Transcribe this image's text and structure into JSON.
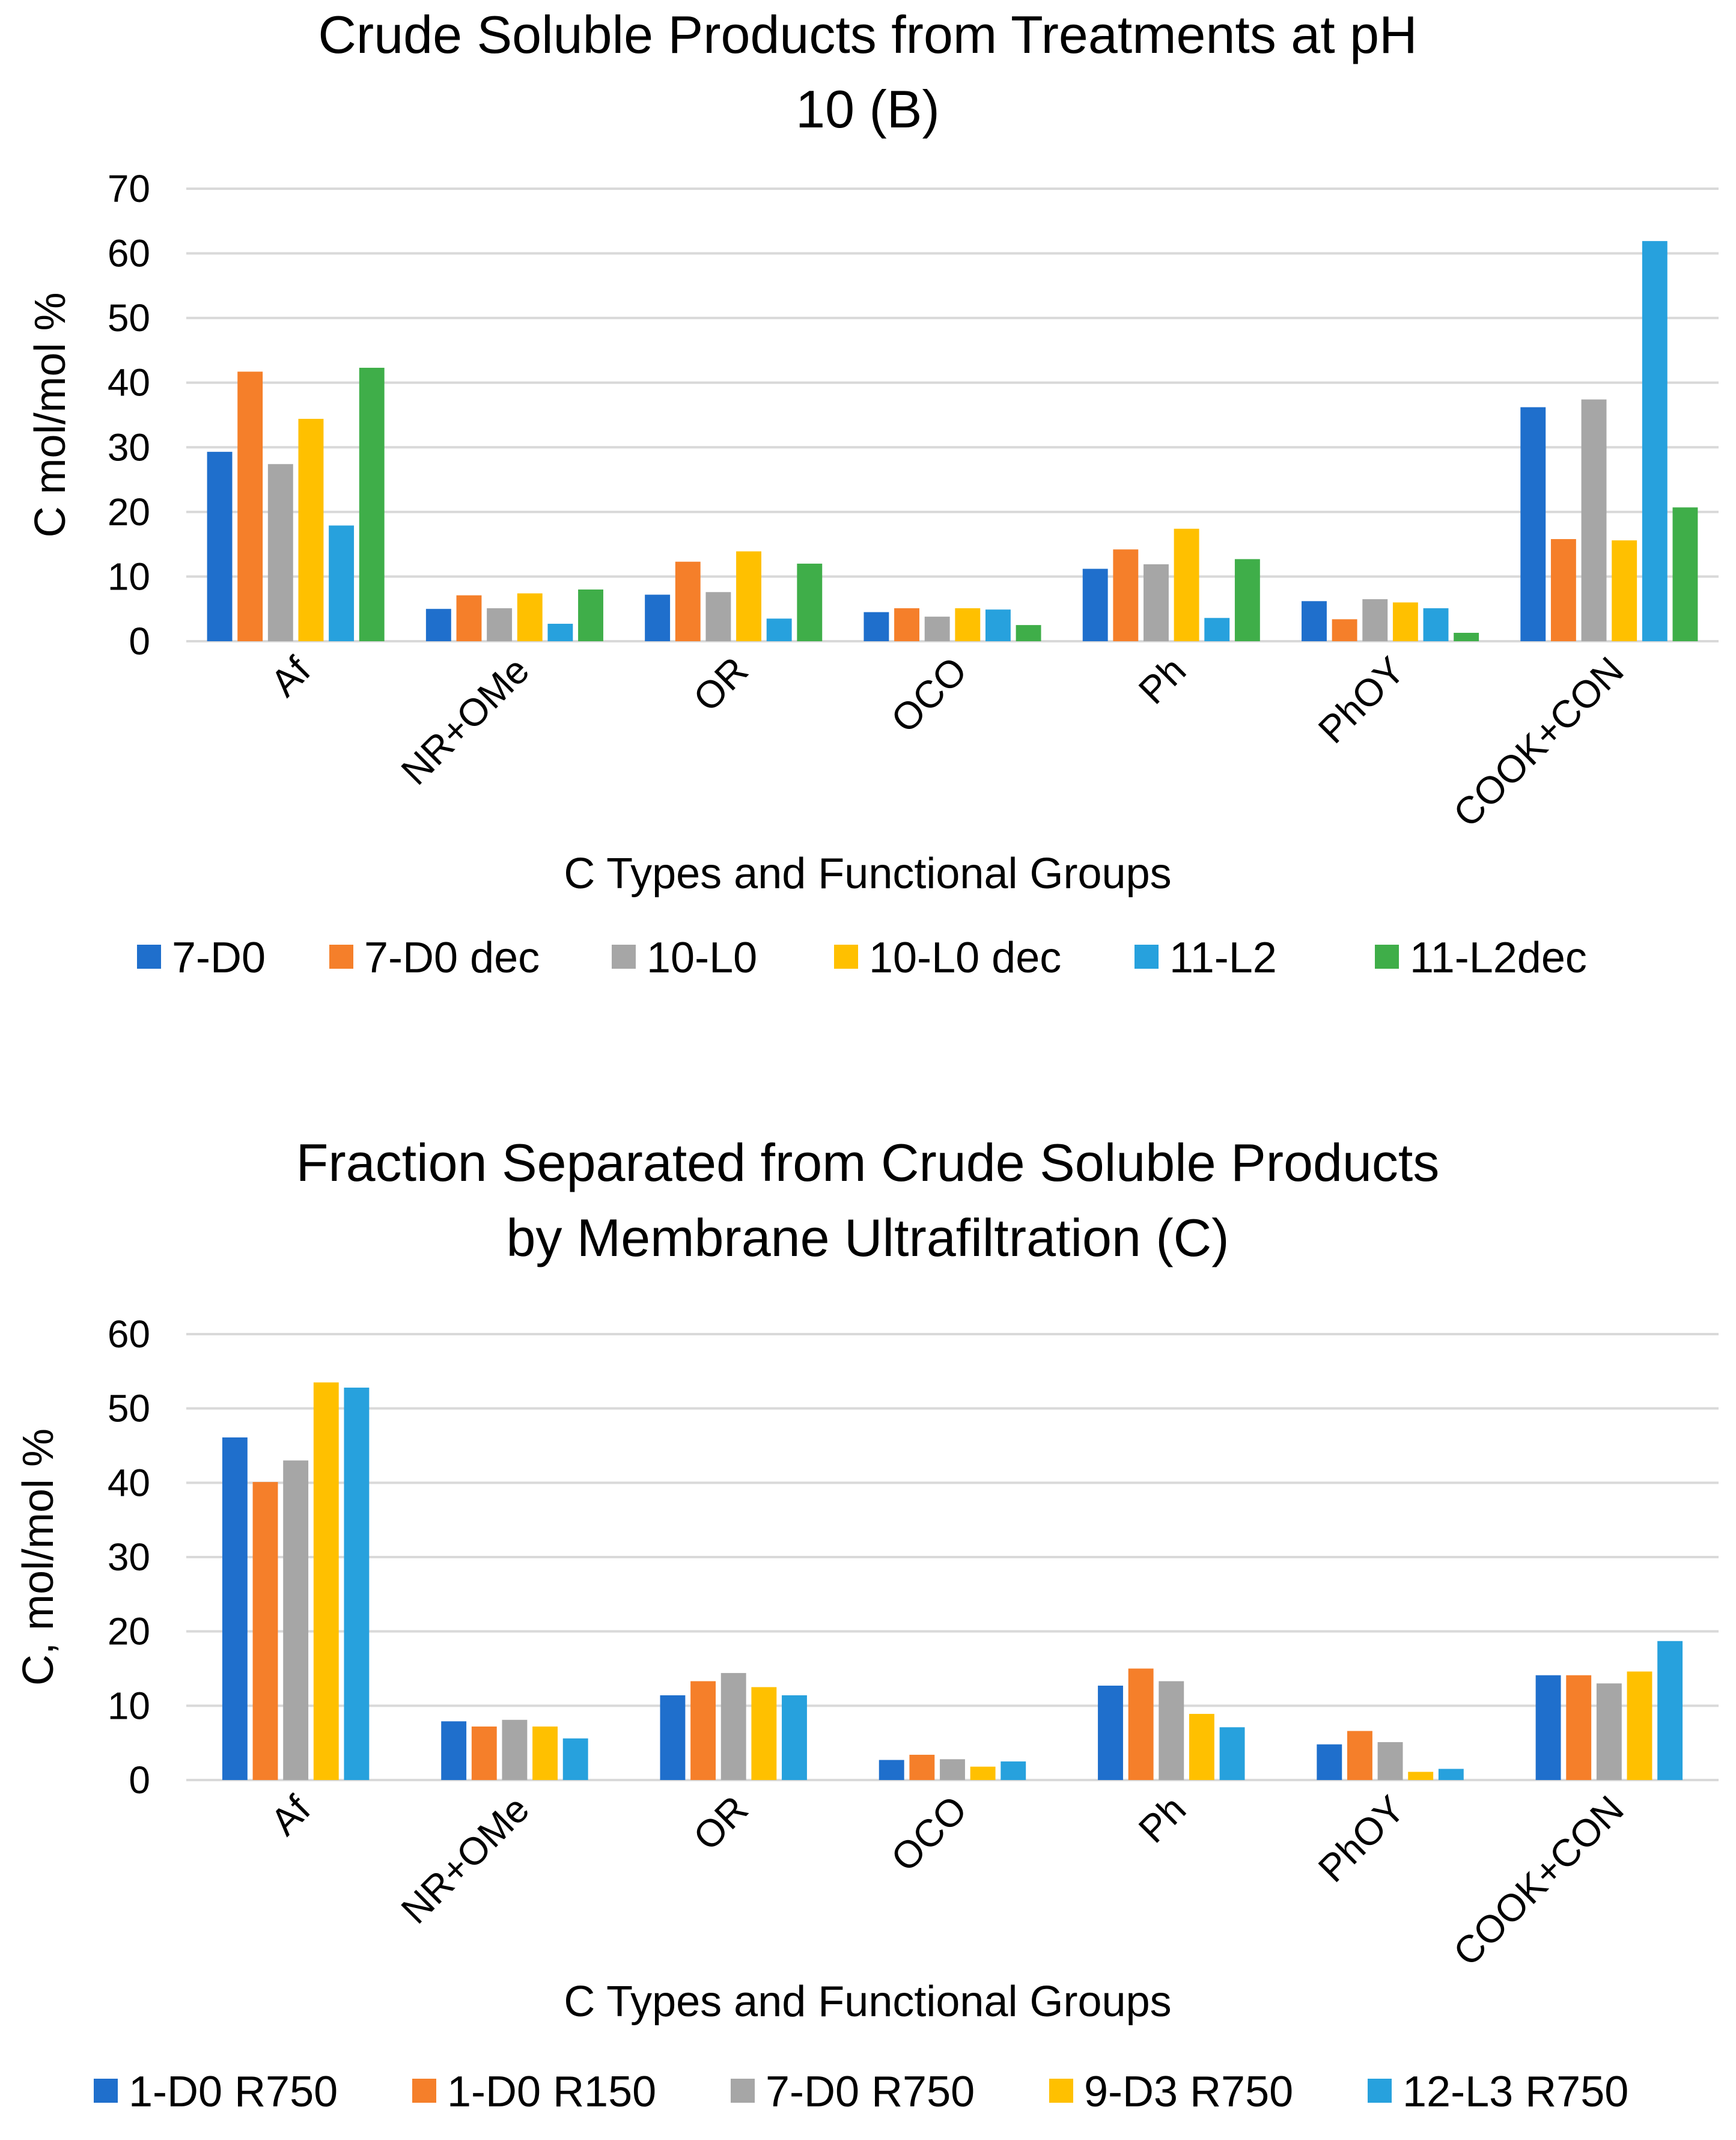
{
  "chart_data": [
    {
      "type": "bar",
      "title": [
        "Crude Soluble Products from Treatments at pH",
        "10 (B)"
      ],
      "xlabel": "C Types and Functional Groups",
      "ylabel": "C mol/mol %",
      "ylim": [
        0,
        70
      ],
      "yticks": [
        0,
        10,
        20,
        30,
        40,
        50,
        60,
        70
      ],
      "grid": true,
      "legend": "bottom",
      "categories": [
        "Af",
        "NR+OMe",
        "OR",
        "OCO",
        "Ph",
        "PhOY",
        "COOK+CON"
      ],
      "series": [
        {
          "name": "7-D0",
          "color": "#1f6fcc",
          "values": [
            29.3,
            5.0,
            7.2,
            4.5,
            11.2,
            6.2,
            36.2
          ]
        },
        {
          "name": "7-D0 dec",
          "color": "#f57f2a",
          "values": [
            41.7,
            7.1,
            12.3,
            5.1,
            14.2,
            3.4,
            15.8
          ]
        },
        {
          "name": "10-L0",
          "color": "#a6a6a6",
          "values": [
            27.4,
            5.1,
            7.6,
            3.8,
            11.9,
            6.5,
            37.4
          ]
        },
        {
          "name": "10-L0 dec",
          "color": "#ffc000",
          "values": [
            34.4,
            7.4,
            13.9,
            5.1,
            17.4,
            6.0,
            15.6
          ]
        },
        {
          "name": "11-L2",
          "color": "#27a1dd",
          "values": [
            17.9,
            2.7,
            3.5,
            4.9,
            3.6,
            5.1,
            61.9
          ]
        },
        {
          "name": "11-L2dec",
          "color": "#3fae49",
          "values": [
            42.3,
            8.0,
            12.0,
            2.5,
            12.7,
            1.3,
            20.7
          ]
        }
      ]
    },
    {
      "type": "bar",
      "title": [
        "Fraction Separated from Crude Soluble Products",
        "by Membrane Ultrafiltration (C)"
      ],
      "xlabel": "C Types and Functional Groups",
      "ylabel": "C, mol/mol %",
      "ylim": [
        0,
        60
      ],
      "yticks": [
        0,
        10,
        20,
        30,
        40,
        50,
        60
      ],
      "grid": true,
      "legend": "bottom",
      "categories": [
        "Af",
        "NR+OMe",
        "OR",
        "OCO",
        "Ph",
        "PhOY",
        "COOK+CON"
      ],
      "series": [
        {
          "name": "1-D0 R750",
          "color": "#1f6fcc",
          "values": [
            46.1,
            7.9,
            11.4,
            2.7,
            12.7,
            4.8,
            14.1
          ]
        },
        {
          "name": "1-D0 R150",
          "color": "#f57f2a",
          "values": [
            40.1,
            7.2,
            13.3,
            3.4,
            15.0,
            6.6,
            14.1
          ]
        },
        {
          "name": "7-D0 R750",
          "color": "#a6a6a6",
          "values": [
            43.0,
            8.1,
            14.4,
            2.8,
            13.3,
            5.1,
            13.0
          ]
        },
        {
          "name": "9-D3 R750",
          "color": "#ffc000",
          "values": [
            53.5,
            7.2,
            12.5,
            1.8,
            8.9,
            1.1,
            14.6
          ]
        },
        {
          "name": "12-L3 R750",
          "color": "#27a1dd",
          "values": [
            52.8,
            5.6,
            11.4,
            2.5,
            7.1,
            1.5,
            18.7
          ]
        }
      ]
    }
  ]
}
